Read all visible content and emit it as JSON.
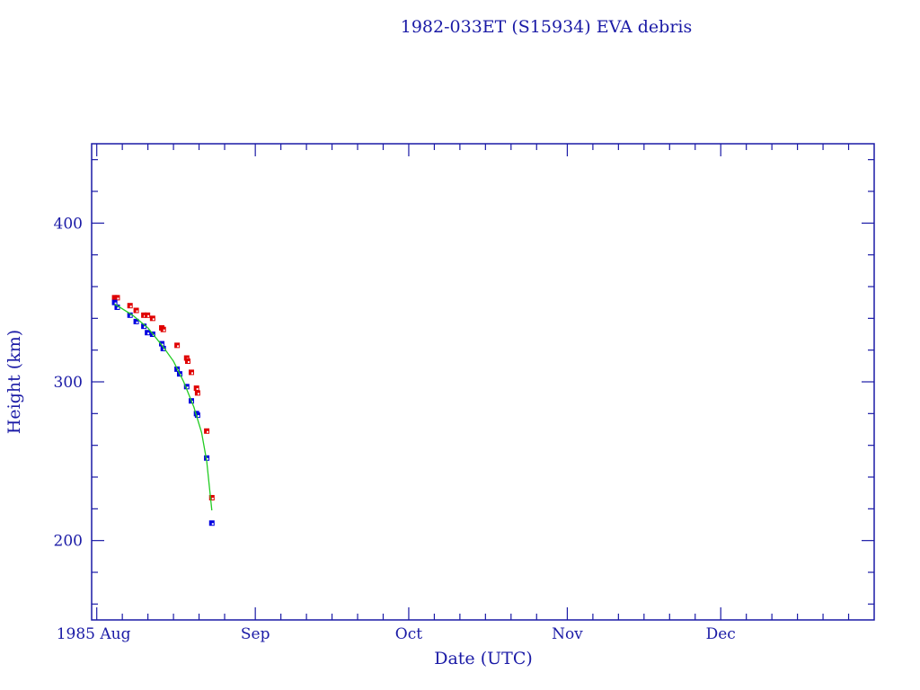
{
  "chart_data": {
    "type": "scatter",
    "title": "1982-033ET (S15934) EVA debris",
    "xlabel": "Date (UTC)",
    "ylabel": "Height (km)",
    "xlim": [
      "1985-07-31",
      "1985-12-31"
    ],
    "ylim": [
      150,
      450
    ],
    "x_tick_labels": [
      {
        "date": "1985-08-01",
        "label": "1985 Aug"
      },
      {
        "date": "1985-09-01",
        "label": "Sep"
      },
      {
        "date": "1985-10-01",
        "label": "Oct"
      },
      {
        "date": "1985-11-01",
        "label": "Nov"
      },
      {
        "date": "1985-12-01",
        "label": "Dec"
      }
    ],
    "y_ticks": [
      200,
      300,
      400
    ],
    "y_tick_labels": [
      "200",
      "300",
      "400"
    ],
    "grid": false,
    "colors": {
      "axis": "#1a1aa6",
      "series_red": "#e00000",
      "series_blue": "#0000e0",
      "fit": "#22cc22"
    },
    "series": [
      {
        "color": "#e00000",
        "marker": "square",
        "points": [
          [
            "1985-08-04T12:00",
            353
          ],
          [
            "1985-08-05T00:00",
            353
          ],
          [
            "1985-08-07T12:00",
            348
          ],
          [
            "1985-08-08T17:00",
            345
          ],
          [
            "1985-08-10T05:00",
            342
          ],
          [
            "1985-08-10T22:00",
            342
          ],
          [
            "1985-08-11T22:00",
            340
          ],
          [
            "1985-08-13T17:00",
            334
          ],
          [
            "1985-08-14T00:00",
            333
          ],
          [
            "1985-08-16T17:00",
            323
          ],
          [
            "1985-08-18T14:00",
            315
          ],
          [
            "1985-08-18T19:00",
            313
          ],
          [
            "1985-08-19T12:00",
            306
          ],
          [
            "1985-08-20T12:00",
            296
          ],
          [
            "1985-08-20T17:00",
            293
          ],
          [
            "1985-08-22T12:00",
            269
          ],
          [
            "1985-08-23T12:00",
            227
          ]
        ]
      },
      {
        "color": "#0000e0",
        "marker": "square",
        "points": [
          [
            "1985-08-04T12:00",
            350
          ],
          [
            "1985-08-05T00:00",
            347
          ],
          [
            "1985-08-07T12:00",
            342
          ],
          [
            "1985-08-08T17:00",
            338
          ],
          [
            "1985-08-10T05:00",
            335
          ],
          [
            "1985-08-10T22:00",
            331
          ],
          [
            "1985-08-11T22:00",
            330
          ],
          [
            "1985-08-13T17:00",
            324
          ],
          [
            "1985-08-14T00:00",
            321
          ],
          [
            "1985-08-16T17:00",
            308
          ],
          [
            "1985-08-17T05:00",
            305
          ],
          [
            "1985-08-18T14:00",
            297
          ],
          [
            "1985-08-19T12:00",
            288
          ],
          [
            "1985-08-20T12:00",
            280
          ],
          [
            "1985-08-20T17:00",
            279
          ],
          [
            "1985-08-22T12:00",
            252
          ],
          [
            "1985-08-23T12:00",
            211
          ]
        ]
      },
      {
        "color": "#22cc22",
        "marker": "line",
        "points": [
          [
            "1985-08-04T12:00",
            349
          ],
          [
            "1985-08-08T00:00",
            342
          ],
          [
            "1985-08-11T00:00",
            334
          ],
          [
            "1985-08-14T00:00",
            322
          ],
          [
            "1985-08-16T00:00",
            313
          ],
          [
            "1985-08-18T00:00",
            300
          ],
          [
            "1985-08-20T00:00",
            284
          ],
          [
            "1985-08-21T12:00",
            268
          ],
          [
            "1985-08-22T12:00",
            250
          ],
          [
            "1985-08-23T12:00",
            219
          ]
        ]
      }
    ]
  }
}
